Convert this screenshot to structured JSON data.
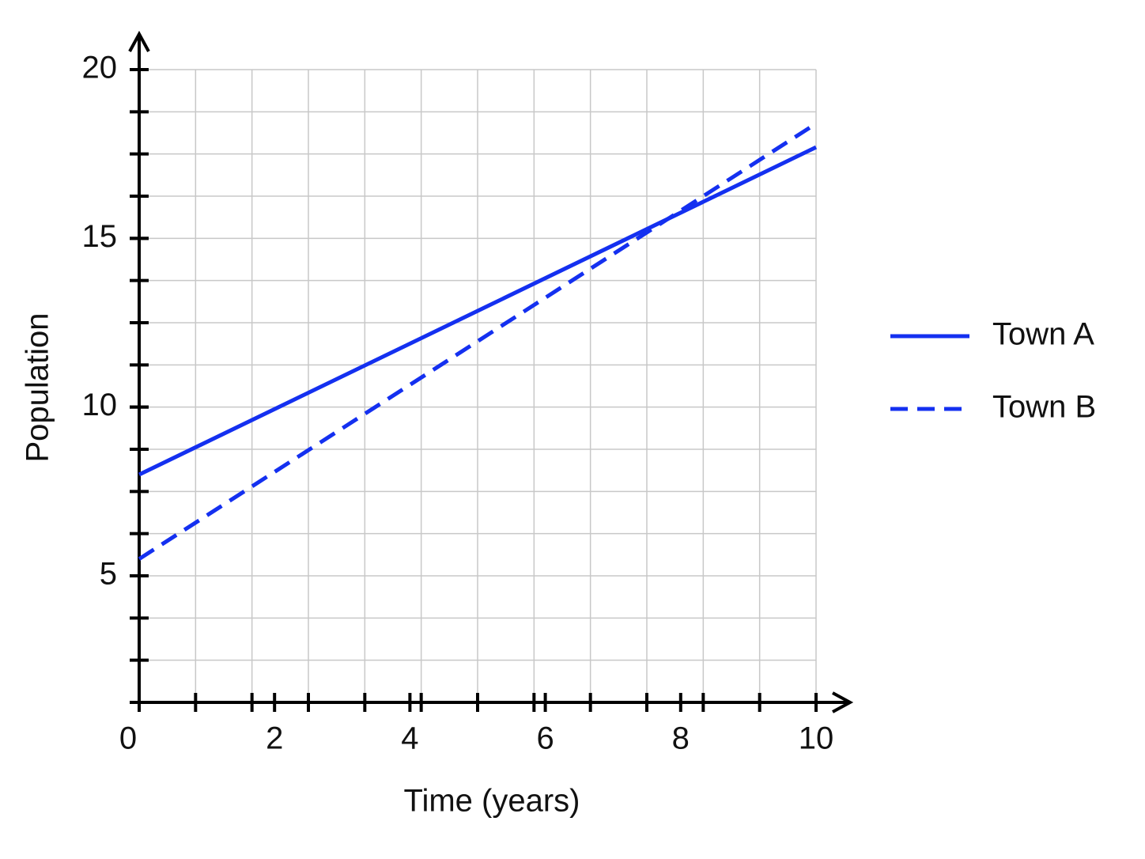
{
  "chart_data": {
    "type": "line",
    "xlabel": "Time (years)",
    "ylabel": "Population",
    "x": [
      0,
      10
    ],
    "series": [
      {
        "name": "Town A",
        "color": "#1430f0",
        "dash": "solid",
        "values": [
          8,
          17.7
        ]
      },
      {
        "name": "Town B",
        "color": "#1430f0",
        "dash": "dashed",
        "values": [
          5.5,
          18.4
        ]
      }
    ],
    "xlim": [
      0,
      10
    ],
    "xticks": [
      0,
      2,
      4,
      6,
      8,
      10
    ],
    "ylim": [
      1.25,
      20
    ],
    "yticks": [
      5,
      10,
      15,
      20
    ],
    "grid": true,
    "legend": "right"
  }
}
